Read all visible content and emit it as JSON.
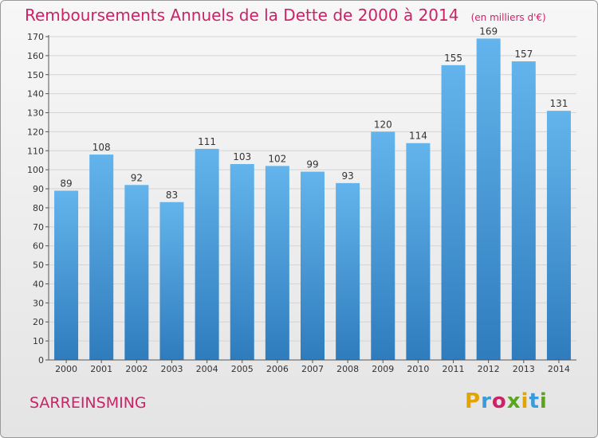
{
  "title": "Remboursements Annuels de la Dette de 2000 à 2014",
  "unit_note": "(en milliers d'€)",
  "place_name": "SARREINSMING",
  "brand": {
    "letters": [
      "P",
      "r",
      "o",
      "x",
      "i",
      "t",
      "i"
    ],
    "colors": [
      "#e2a400",
      "#3a9bd8",
      "#cc2266",
      "#5aa51e",
      "#e2a400",
      "#3a9bd8",
      "#5aa51e"
    ]
  },
  "colors": {
    "bar_top": "#63b4ec",
    "bar_bottom": "#2f7cbd",
    "title": "#cc2266",
    "grid": "#d4d4d4"
  },
  "chart_data": {
    "type": "bar",
    "categories": [
      "2000",
      "2001",
      "2002",
      "2003",
      "2004",
      "2005",
      "2006",
      "2007",
      "2008",
      "2009",
      "2010",
      "2011",
      "2012",
      "2013",
      "2014"
    ],
    "values": [
      89,
      108,
      92,
      83,
      111,
      103,
      102,
      99,
      93,
      120,
      114,
      155,
      169,
      157,
      131
    ],
    "ylim": [
      0,
      170
    ],
    "yticks": [
      0,
      10,
      20,
      30,
      40,
      50,
      60,
      70,
      80,
      90,
      100,
      110,
      120,
      130,
      140,
      150,
      160,
      170
    ],
    "grid": true,
    "data_labels": true
  }
}
